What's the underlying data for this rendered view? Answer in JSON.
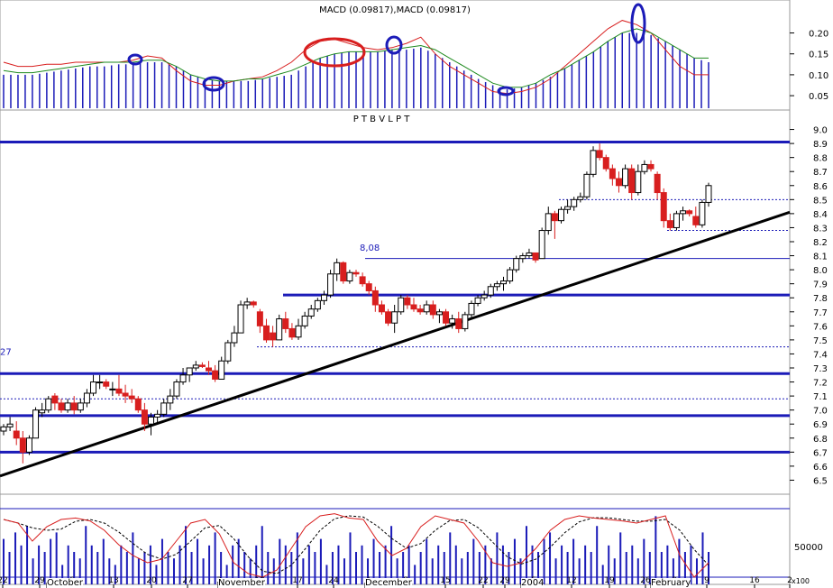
{
  "chart_data": [
    {
      "type": "line",
      "panel": "macd",
      "title": "MACD (0.09817),MACD (0.09817)",
      "yticks": [
        "0.20",
        "0.15",
        "0.10",
        "0.05"
      ],
      "ylim": [
        0.02,
        0.24
      ],
      "series": [
        {
          "color": "#d81e1e",
          "values": [
            0.13,
            0.12,
            0.12,
            0.125,
            0.125,
            0.13,
            0.13,
            0.13,
            0.13,
            0.135,
            0.145,
            0.14,
            0.11,
            0.085,
            0.075,
            0.075,
            0.085,
            0.09,
            0.095,
            0.11,
            0.13,
            0.16,
            0.18,
            0.185,
            0.175,
            0.165,
            0.16,
            0.165,
            0.175,
            0.19,
            0.15,
            0.12,
            0.1,
            0.08,
            0.06,
            0.055,
            0.06,
            0.07,
            0.09,
            0.12,
            0.15,
            0.18,
            0.21,
            0.23,
            0.22,
            0.2,
            0.16,
            0.12,
            0.1,
            0.1
          ]
        },
        {
          "color": "#1e8a1e",
          "values": [
            0.11,
            0.105,
            0.105,
            0.11,
            0.115,
            0.12,
            0.125,
            0.13,
            0.13,
            0.13,
            0.135,
            0.135,
            0.12,
            0.1,
            0.09,
            0.085,
            0.085,
            0.09,
            0.09,
            0.1,
            0.11,
            0.125,
            0.14,
            0.15,
            0.155,
            0.155,
            0.155,
            0.16,
            0.165,
            0.17,
            0.16,
            0.14,
            0.12,
            0.1,
            0.08,
            0.07,
            0.07,
            0.08,
            0.1,
            0.115,
            0.135,
            0.155,
            0.18,
            0.2,
            0.21,
            0.2,
            0.18,
            0.16,
            0.14,
            0.14
          ]
        }
      ],
      "histogram": [
        0.1,
        0.1,
        0.1,
        0.105,
        0.11,
        0.115,
        0.12,
        0.12,
        0.125,
        0.125,
        0.13,
        0.13,
        0.12,
        0.1,
        0.09,
        0.085,
        0.085,
        0.085,
        0.09,
        0.095,
        0.1,
        0.12,
        0.14,
        0.15,
        0.155,
        0.155,
        0.155,
        0.16,
        0.16,
        0.165,
        0.15,
        0.13,
        0.11,
        0.09,
        0.075,
        0.065,
        0.07,
        0.08,
        0.095,
        0.115,
        0.135,
        0.155,
        0.18,
        0.2,
        0.2,
        0.195,
        0.18,
        0.16,
        0.14,
        0.13
      ]
    },
    {
      "type": "candlestick",
      "panel": "price",
      "title": "P T B V L P T",
      "ylim": [
        6.4,
        9.1
      ],
      "yticks": [
        "9.0",
        "8.9",
        "8.8",
        "8.7",
        "8.6",
        "8.5",
        "8.4",
        "8.3",
        "8.2",
        "8.1",
        "8.0",
        "7.9",
        "7.8",
        "7.7",
        "7.6",
        "7.5",
        "7.4",
        "7.3",
        "7.2",
        "7.1",
        "7.0",
        "6.9",
        "6.8",
        "6.7",
        "6.6",
        "6.5"
      ],
      "annotations": [
        {
          "text": "8,08",
          "x_index": 57,
          "y": 8.16
        },
        {
          "text": "27",
          "x_index": 0,
          "y": 7.42
        }
      ],
      "thick_levels": [
        8.91,
        7.82,
        7.26,
        6.96,
        6.7
      ],
      "thin_levels": [
        8.08
      ],
      "dashed_levels": [
        8.5,
        8.28,
        7.45,
        7.08
      ],
      "trendline": {
        "from": {
          "x_index": 0,
          "y": 6.53
        },
        "to": {
          "x_index": 126,
          "y": 8.41
        }
      },
      "candles": [
        [
          6.85,
          6.9,
          6.82,
          6.88
        ],
        [
          6.88,
          6.95,
          6.85,
          6.9
        ],
        [
          6.85,
          6.92,
          6.75,
          6.8
        ],
        [
          6.8,
          6.85,
          6.62,
          6.7
        ],
        [
          6.7,
          6.82,
          6.68,
          6.8
        ],
        [
          6.8,
          7.02,
          6.8,
          7.0
        ],
        [
          6.98,
          7.05,
          6.95,
          7.0
        ],
        [
          7.0,
          7.1,
          6.98,
          7.08
        ],
        [
          7.1,
          7.12,
          7.0,
          7.05
        ],
        [
          7.05,
          7.08,
          6.98,
          7.0
        ],
        [
          7.0,
          7.08,
          6.98,
          7.05
        ],
        [
          7.05,
          7.1,
          6.97,
          7.0
        ],
        [
          7.0,
          7.08,
          6.98,
          7.05
        ],
        [
          7.05,
          7.15,
          7.02,
          7.12
        ],
        [
          7.12,
          7.25,
          7.1,
          7.2
        ],
        [
          7.2,
          7.25,
          7.15,
          7.2
        ],
        [
          7.2,
          7.22,
          7.15,
          7.17
        ],
        [
          7.15,
          7.2,
          7.1,
          7.15
        ],
        [
          7.15,
          7.25,
          7.1,
          7.12
        ],
        [
          7.12,
          7.18,
          7.05,
          7.1
        ],
        [
          7.1,
          7.15,
          7.05,
          7.08
        ],
        [
          7.08,
          7.1,
          6.98,
          7.0
        ],
        [
          7.0,
          7.05,
          6.85,
          6.9
        ],
        [
          6.9,
          6.98,
          6.82,
          6.95
        ],
        [
          6.95,
          7.0,
          6.9,
          6.97
        ],
        [
          6.97,
          7.08,
          6.95,
          7.05
        ],
        [
          7.05,
          7.15,
          7.0,
          7.1
        ],
        [
          7.1,
          7.22,
          7.08,
          7.2
        ],
        [
          7.2,
          7.3,
          7.18,
          7.25
        ],
        [
          7.25,
          7.3,
          7.2,
          7.3
        ],
        [
          7.3,
          7.35,
          7.28,
          7.32
        ],
        [
          7.32,
          7.34,
          7.3,
          7.31
        ],
        [
          7.3,
          7.35,
          7.25,
          7.28
        ],
        [
          7.28,
          7.32,
          7.2,
          7.22
        ],
        [
          7.22,
          7.38,
          7.22,
          7.35
        ],
        [
          7.35,
          7.5,
          7.33,
          7.48
        ],
        [
          7.48,
          7.6,
          7.45,
          7.55
        ],
        [
          7.55,
          7.78,
          7.55,
          7.75
        ],
        [
          7.75,
          7.8,
          7.72,
          7.77
        ],
        [
          7.77,
          7.78,
          7.73,
          7.75
        ],
        [
          7.7,
          7.72,
          7.55,
          7.6
        ],
        [
          7.6,
          7.65,
          7.48,
          7.5
        ],
        [
          7.55,
          7.6,
          7.45,
          7.5
        ],
        [
          7.5,
          7.68,
          7.5,
          7.65
        ],
        [
          7.65,
          7.7,
          7.55,
          7.58
        ],
        [
          7.58,
          7.62,
          7.5,
          7.52
        ],
        [
          7.52,
          7.65,
          7.5,
          7.6
        ],
        [
          7.6,
          7.7,
          7.58,
          7.67
        ],
        [
          7.67,
          7.75,
          7.65,
          7.72
        ],
        [
          7.72,
          7.8,
          7.7,
          7.78
        ],
        [
          7.78,
          7.85,
          7.75,
          7.82
        ],
        [
          7.82,
          8.0,
          7.8,
          7.97
        ],
        [
          7.97,
          8.08,
          7.92,
          8.05
        ],
        [
          8.05,
          8.06,
          7.9,
          7.92
        ],
        [
          7.92,
          8.0,
          7.9,
          7.98
        ],
        [
          7.98,
          8.0,
          7.95,
          7.97
        ],
        [
          7.95,
          7.98,
          7.88,
          7.9
        ],
        [
          7.9,
          7.92,
          7.82,
          7.85
        ],
        [
          7.85,
          7.88,
          7.7,
          7.75
        ],
        [
          7.75,
          7.78,
          7.68,
          7.7
        ],
        [
          7.7,
          7.72,
          7.6,
          7.62
        ],
        [
          7.62,
          7.75,
          7.55,
          7.7
        ],
        [
          7.7,
          7.82,
          7.68,
          7.8
        ],
        [
          7.8,
          7.82,
          7.72,
          7.75
        ],
        [
          7.75,
          7.8,
          7.7,
          7.72
        ],
        [
          7.72,
          7.75,
          7.68,
          7.7
        ],
        [
          7.7,
          7.78,
          7.68,
          7.75
        ],
        [
          7.75,
          7.78,
          7.65,
          7.68
        ],
        [
          7.68,
          7.72,
          7.62,
          7.7
        ],
        [
          7.7,
          7.72,
          7.6,
          7.62
        ],
        [
          7.62,
          7.68,
          7.58,
          7.65
        ],
        [
          7.65,
          7.7,
          7.55,
          7.58
        ],
        [
          7.58,
          7.7,
          7.56,
          7.68
        ],
        [
          7.68,
          7.78,
          7.65,
          7.76
        ],
        [
          7.76,
          7.82,
          7.74,
          7.8
        ],
        [
          7.8,
          7.85,
          7.78,
          7.82
        ],
        [
          7.82,
          7.9,
          7.8,
          7.88
        ],
        [
          7.88,
          7.92,
          7.85,
          7.9
        ],
        [
          7.9,
          7.95,
          7.85,
          7.92
        ],
        [
          7.92,
          8.02,
          7.9,
          8.0
        ],
        [
          8.0,
          8.1,
          7.98,
          8.08
        ],
        [
          8.08,
          8.12,
          8.05,
          8.1
        ],
        [
          8.1,
          8.15,
          8.08,
          8.12
        ],
        [
          8.12,
          8.1,
          8.05,
          8.07
        ],
        [
          8.08,
          8.3,
          8.08,
          8.28
        ],
        [
          8.28,
          8.45,
          8.25,
          8.4
        ],
        [
          8.4,
          8.42,
          8.22,
          8.35
        ],
        [
          8.35,
          8.45,
          8.33,
          8.43
        ],
        [
          8.43,
          8.5,
          8.4,
          8.45
        ],
        [
          8.45,
          8.52,
          8.42,
          8.5
        ],
        [
          8.5,
          8.55,
          8.48,
          8.52
        ],
        [
          8.52,
          8.7,
          8.5,
          8.68
        ],
        [
          8.68,
          8.88,
          8.66,
          8.85
        ],
        [
          8.85,
          8.9,
          8.78,
          8.8
        ],
        [
          8.8,
          8.82,
          8.7,
          8.72
        ],
        [
          8.72,
          8.75,
          8.6,
          8.65
        ],
        [
          8.65,
          8.7,
          8.55,
          8.6
        ],
        [
          8.6,
          8.75,
          8.58,
          8.72
        ],
        [
          8.72,
          8.75,
          8.5,
          8.55
        ],
        [
          8.55,
          8.75,
          8.53,
          8.7
        ],
        [
          8.7,
          8.78,
          8.68,
          8.75
        ],
        [
          8.75,
          8.78,
          8.7,
          8.72
        ],
        [
          8.68,
          8.7,
          8.5,
          8.55
        ],
        [
          8.55,
          8.58,
          8.3,
          8.35
        ],
        [
          8.35,
          8.4,
          8.28,
          8.3
        ],
        [
          8.3,
          8.42,
          8.28,
          8.4
        ],
        [
          8.4,
          8.45,
          8.35,
          8.42
        ],
        [
          8.42,
          8.43,
          8.38,
          8.4
        ],
        [
          8.38,
          8.45,
          8.3,
          8.32
        ],
        [
          8.32,
          8.5,
          8.3,
          8.48
        ],
        [
          8.48,
          8.62,
          8.45,
          8.6
        ]
      ],
      "xticks": [
        "22",
        "29",
        "6",
        "13",
        "20",
        "27",
        "3",
        "10",
        "17",
        "24",
        "1",
        "8",
        "15",
        "22",
        "29",
        "5",
        "12",
        "19",
        "26",
        "2",
        "9",
        "16",
        "2"
      ],
      "month_labels": [
        "October",
        "November",
        "December",
        "2004",
        "February"
      ]
    },
    {
      "type": "bar",
      "panel": "volume",
      "ytick": "50000",
      "unit_label": "x100",
      "values": [
        0.7,
        0.5,
        0.8,
        0.6,
        0.9,
        0.4,
        0.6,
        0.5,
        0.7,
        0.8,
        0.3,
        0.6,
        0.5,
        0.4,
        0.9,
        0.6,
        0.5,
        0.7,
        0.4,
        0.3,
        0.6,
        0.5,
        0.8,
        0.4,
        0.5,
        0.6,
        0.3,
        0.7,
        0.5,
        0.4,
        0.6,
        0.9,
        0.5,
        0.7,
        0.4,
        0.6,
        0.8,
        0.5,
        0.3,
        0.6,
        0.7,
        0.5,
        0.4,
        0.6,
        0.9,
        0.5,
        0.4,
        0.7,
        0.6,
        0.5,
        0.8,
        0.4,
        0.6,
        0.5,
        0.7,
        0.3,
        0.5,
        0.6,
        0.4,
        0.8,
        0.5,
        0.6,
        0.4,
        0.7,
        0.5,
        0.6,
        0.9,
        0.4,
        0.5,
        0.6,
        0.3,
        0.5,
        0.7,
        0.4,
        0.6,
        0.5,
        0.8,
        0.6,
        0.4,
        0.5,
        0.7,
        0.5,
        0.6,
        0.4,
        0.8,
        0.6,
        0.5,
        0.7,
        0.4,
        0.9,
        0.6,
        0.5,
        0.7,
        0.8,
        0.4,
        0.6,
        0.5,
        0.7,
        0.4,
        0.6,
        0.5,
        0.9,
        0.3,
        0.6,
        0.4,
        0.8,
        0.5,
        0.6,
        0.4,
        0.7,
        0.5,
        1.05,
        0.5,
        0.6,
        0.4,
        0.7,
        0.5,
        0.6,
        0.4,
        0.8,
        0.5
      ],
      "stochastic": {
        "k_color": "#d81e1e",
        "d_style": "dashed"
      }
    }
  ],
  "months": {
    "october": "October",
    "november": "November",
    "december": "December",
    "year2004": "2004",
    "february": "February"
  }
}
